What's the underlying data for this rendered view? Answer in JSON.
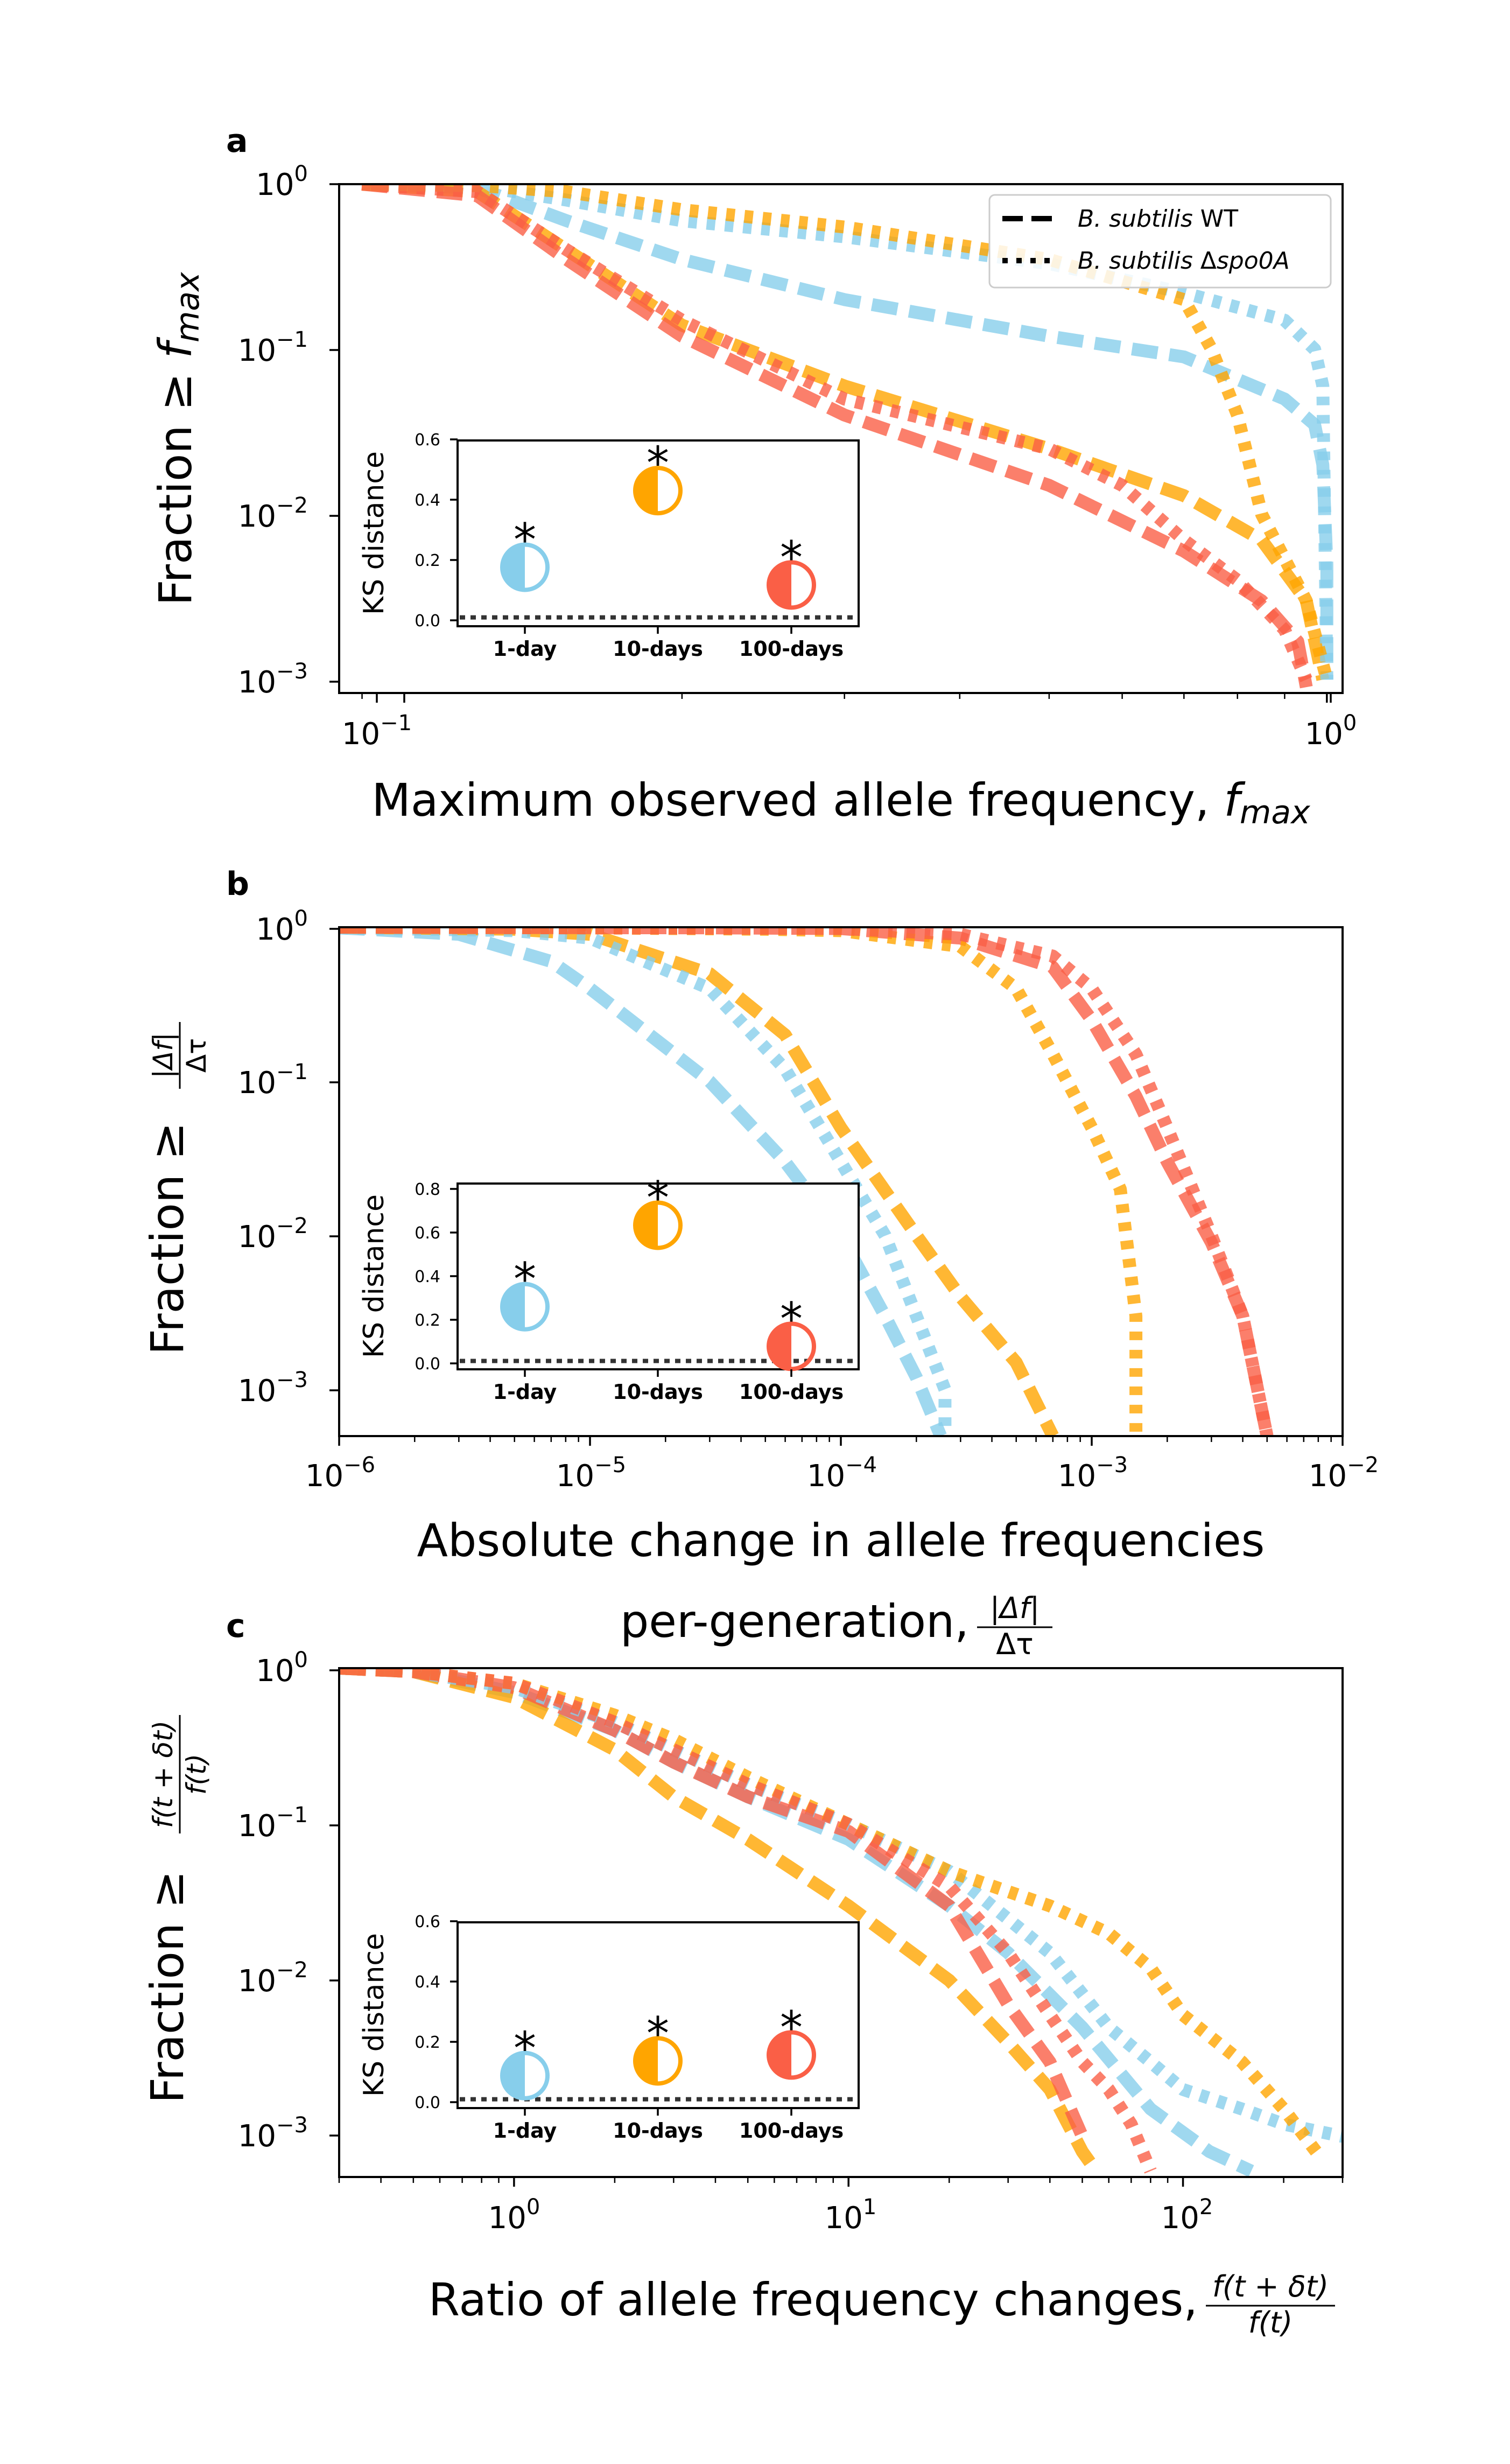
{
  "colors": {
    "1-day": "#87ceeb",
    "10-days": "#ffa500",
    "100-days": "#fa5f46"
  },
  "legend": [
    {
      "style": "dashed",
      "label_italic": "B. subtilis",
      "label_rest": " WT"
    },
    {
      "style": "dotted",
      "label_italic": "B. subtilis",
      "label_rest": " Δ",
      "label_italic2": "spo0A"
    }
  ],
  "panels": [
    {
      "panel_label": "a",
      "xlabel_main": "Maximum observed allele frequency, ",
      "xlabel_math": "f",
      "xlabel_sub": "max",
      "ylabel_main": "Fraction ≥ ",
      "ylabel_math": "f",
      "ylabel_sub": "max",
      "x_ticks": [
        {
          "base": "10",
          "exp": "−1"
        },
        {
          "base": "10",
          "exp": "0"
        }
      ],
      "y_ticks": [
        {
          "base": "10",
          "exp": "0"
        },
        {
          "base": "10",
          "exp": "−1"
        },
        {
          "base": "10",
          "exp": "−2"
        },
        {
          "base": "10",
          "exp": "−3"
        }
      ],
      "inset": {
        "ylabel": "KS distance",
        "yticks": [
          "0.0",
          "0.2",
          "0.4",
          "0.6"
        ],
        "categories": [
          "1-day",
          "10-days",
          "100-days"
        ],
        "stars": [
          "*",
          "*",
          "*"
        ]
      }
    },
    {
      "panel_label": "b",
      "xlabel_line1": "Absolute change in allele frequencies",
      "xlabel_line2": "per-generation, ",
      "frac_num": "|Δf|",
      "frac_den": "Δτ",
      "ylabel_main": "Fraction ≥ ",
      "x_ticks": [
        {
          "base": "10",
          "exp": "−6"
        },
        {
          "base": "10",
          "exp": "−5"
        },
        {
          "base": "10",
          "exp": "−4"
        },
        {
          "base": "10",
          "exp": "−3"
        },
        {
          "base": "10",
          "exp": "−2"
        }
      ],
      "y_ticks": [
        {
          "base": "10",
          "exp": "0"
        },
        {
          "base": "10",
          "exp": "−1"
        },
        {
          "base": "10",
          "exp": "−2"
        },
        {
          "base": "10",
          "exp": "−3"
        }
      ],
      "inset": {
        "ylabel": "KS distance",
        "yticks": [
          "0.0",
          "0.2",
          "0.4",
          "0.6",
          "0.8"
        ],
        "categories": [
          "1-day",
          "10-days",
          "100-days"
        ],
        "stars": [
          "*",
          "*",
          "*"
        ]
      }
    },
    {
      "panel_label": "c",
      "xlabel_main": "Ratio of allele frequency changes, ",
      "frac_num": "f(t + δt)",
      "frac_den": "f(t)",
      "ylabel_main": "Fraction ≥ ",
      "x_ticks": [
        {
          "base": "10",
          "exp": "0"
        },
        {
          "base": "10",
          "exp": "1"
        },
        {
          "base": "10",
          "exp": "2"
        }
      ],
      "y_ticks": [
        {
          "base": "10",
          "exp": "0"
        },
        {
          "base": "10",
          "exp": "−1"
        },
        {
          "base": "10",
          "exp": "−2"
        },
        {
          "base": "10",
          "exp": "−3"
        }
      ],
      "inset": {
        "ylabel": "KS distance",
        "yticks": [
          "0.0",
          "0.2",
          "0.4",
          "0.6"
        ],
        "categories": [
          "1-day",
          "10-days",
          "100-days"
        ],
        "stars": [
          "*",
          "*",
          "*"
        ]
      }
    }
  ],
  "chart_data": [
    {
      "type": "line",
      "x_scale": "log",
      "y_scale": "log",
      "xlim": [
        0.085,
        1.04
      ],
      "ylim": [
        0.00083,
        1.0
      ],
      "series": [
        {
          "group": "1-day",
          "style": "dashed",
          "x": [
            0.09,
            0.12,
            0.15,
            0.2,
            0.3,
            0.5,
            0.7,
            0.9,
            0.97,
            0.99,
            1.0,
            1.0
          ],
          "y": [
            1,
            0.95,
            0.6,
            0.35,
            0.2,
            0.12,
            0.09,
            0.05,
            0.035,
            0.02,
            0.005,
            0.001
          ]
        },
        {
          "group": "10-days",
          "style": "dashed",
          "x": [
            0.09,
            0.12,
            0.15,
            0.2,
            0.3,
            0.5,
            0.7,
            0.85,
            0.95,
            0.99
          ],
          "y": [
            1,
            0.9,
            0.4,
            0.14,
            0.06,
            0.025,
            0.013,
            0.007,
            0.003,
            0.001
          ]
        },
        {
          "group": "100-days",
          "style": "dashed",
          "x": [
            0.09,
            0.12,
            0.15,
            0.2,
            0.3,
            0.5,
            0.7,
            0.85,
            0.93,
            0.95
          ],
          "y": [
            1,
            0.85,
            0.35,
            0.12,
            0.04,
            0.015,
            0.006,
            0.003,
            0.0017,
            0.0009
          ]
        },
        {
          "group": "1-day",
          "style": "dotted",
          "x": [
            0.09,
            0.12,
            0.15,
            0.2,
            0.3,
            0.5,
            0.7,
            0.9,
            0.97,
            0.99,
            1.0
          ],
          "y": [
            1,
            0.98,
            0.8,
            0.6,
            0.48,
            0.33,
            0.22,
            0.15,
            0.1,
            0.06,
            0.001
          ]
        },
        {
          "group": "10-days",
          "style": "dotted",
          "x": [
            0.09,
            0.12,
            0.15,
            0.2,
            0.3,
            0.5,
            0.7,
            0.75,
            0.8,
            0.85,
            0.95,
            1.0
          ],
          "y": [
            1,
            0.98,
            0.9,
            0.7,
            0.55,
            0.35,
            0.2,
            0.1,
            0.04,
            0.01,
            0.003,
            0.001
          ]
        },
        {
          "group": "100-days",
          "style": "dotted",
          "x": [
            0.09,
            0.12,
            0.15,
            0.2,
            0.3,
            0.5,
            0.6,
            0.7,
            0.8,
            0.9,
            0.95
          ],
          "y": [
            1,
            0.9,
            0.4,
            0.15,
            0.05,
            0.025,
            0.015,
            0.007,
            0.004,
            0.002,
            0.001
          ]
        }
      ],
      "inset": {
        "ylim": [
          -0.03,
          0.6
        ],
        "points": [
          {
            "group": "1-day",
            "value": 0.17
          },
          {
            "group": "10-days",
            "value": 0.43
          },
          {
            "group": "100-days",
            "value": 0.11
          }
        ]
      }
    },
    {
      "type": "line",
      "x_scale": "log",
      "y_scale": "log",
      "xlim": [
        1e-06,
        0.01
      ],
      "ylim": [
        0.0005,
        1.0
      ],
      "series": [
        {
          "group": "1-day",
          "style": "dashed",
          "x": [
            1e-06,
            3e-06,
            7e-06,
            1e-05,
            3e-05,
            6e-05,
            0.0001,
            0.00015,
            0.0002,
            0.00025
          ],
          "y": [
            0.99,
            0.9,
            0.6,
            0.4,
            0.1,
            0.03,
            0.01,
            0.003,
            0.0012,
            0.0005
          ]
        },
        {
          "group": "10-days",
          "style": "dashed",
          "x": [
            1e-06,
            5e-06,
            1e-05,
            3e-05,
            6e-05,
            0.0001,
            0.0002,
            0.0003,
            0.0005,
            0.0007
          ],
          "y": [
            1,
            0.97,
            0.9,
            0.5,
            0.2,
            0.05,
            0.01,
            0.004,
            0.0015,
            0.0005
          ]
        },
        {
          "group": "100-days",
          "style": "dashed",
          "x": [
            1e-06,
            3e-05,
            0.0001,
            0.0003,
            0.0007,
            0.001,
            0.0015,
            0.002,
            0.003,
            0.004,
            0.005
          ],
          "y": [
            1,
            0.99,
            0.98,
            0.85,
            0.55,
            0.25,
            0.08,
            0.03,
            0.009,
            0.003,
            0.0005
          ]
        },
        {
          "group": "1-day",
          "style": "dotted",
          "x": [
            1e-06,
            5e-06,
            1e-05,
            3e-05,
            6e-05,
            0.0001,
            0.00015,
            0.0002,
            0.00026,
            0.00026
          ],
          "y": [
            0.99,
            0.95,
            0.85,
            0.4,
            0.12,
            0.03,
            0.01,
            0.003,
            0.001,
            0.0005
          ]
        },
        {
          "group": "10-days",
          "style": "dotted",
          "x": [
            1e-06,
            1e-05,
            5e-05,
            0.0001,
            0.0003,
            0.0005,
            0.0007,
            0.001,
            0.0013,
            0.0015,
            0.0015
          ],
          "y": [
            1,
            0.99,
            0.97,
            0.95,
            0.75,
            0.4,
            0.15,
            0.05,
            0.02,
            0.003,
            0.0005
          ]
        },
        {
          "group": "100-days",
          "style": "dotted",
          "x": [
            1e-06,
            0.0001,
            0.0003,
            0.0007,
            0.001,
            0.0015,
            0.002,
            0.003,
            0.004,
            0.005
          ],
          "y": [
            1,
            0.98,
            0.9,
            0.65,
            0.4,
            0.15,
            0.05,
            0.01,
            0.003,
            0.0005
          ]
        }
      ],
      "inset": {
        "ylim": [
          -0.04,
          0.85
        ],
        "points": [
          {
            "group": "1-day",
            "value": 0.26
          },
          {
            "group": "10-days",
            "value": 0.65
          },
          {
            "group": "100-days",
            "value": 0.07
          }
        ]
      }
    },
    {
      "type": "line",
      "x_scale": "log",
      "y_scale": "log",
      "xlim": [
        0.3,
        300
      ],
      "ylim": [
        0.00055,
        1.0
      ],
      "series": [
        {
          "group": "1-day",
          "style": "dashed",
          "x": [
            0.3,
            0.5,
            1,
            2,
            3,
            5,
            10,
            20,
            30,
            50,
            80,
            120,
            160
          ],
          "y": [
            1,
            0.95,
            0.7,
            0.4,
            0.25,
            0.15,
            0.08,
            0.03,
            0.015,
            0.005,
            0.0015,
            0.0008,
            0.0006
          ]
        },
        {
          "group": "10-days",
          "style": "dashed",
          "x": [
            0.3,
            0.5,
            1,
            2,
            3,
            5,
            10,
            20,
            30,
            40,
            50,
            55
          ],
          "y": [
            1,
            0.95,
            0.65,
            0.3,
            0.15,
            0.08,
            0.03,
            0.01,
            0.004,
            0.002,
            0.0008,
            0.0006
          ]
        },
        {
          "group": "100-days",
          "style": "dashed",
          "x": [
            0.3,
            0.5,
            1,
            2,
            3,
            5,
            10,
            20,
            30,
            40,
            50
          ],
          "y": [
            1,
            0.95,
            0.75,
            0.4,
            0.25,
            0.15,
            0.09,
            0.03,
            0.007,
            0.003,
            0.001
          ]
        },
        {
          "group": "1-day",
          "style": "dotted",
          "x": [
            0.3,
            0.5,
            1,
            2,
            3,
            5,
            10,
            20,
            40,
            60,
            80,
            100,
            150,
            200,
            300
          ],
          "y": [
            1,
            0.95,
            0.75,
            0.45,
            0.3,
            0.18,
            0.1,
            0.05,
            0.015,
            0.005,
            0.003,
            0.002,
            0.0015,
            0.0012,
            0.001
          ]
        },
        {
          "group": "10-days",
          "style": "dotted",
          "x": [
            0.3,
            0.5,
            1,
            2,
            3,
            5,
            10,
            20,
            40,
            60,
            80,
            100,
            150,
            200,
            250
          ],
          "y": [
            1,
            0.95,
            0.8,
            0.5,
            0.35,
            0.2,
            0.1,
            0.05,
            0.03,
            0.02,
            0.012,
            0.006,
            0.003,
            0.0015,
            0.0008
          ]
        },
        {
          "group": "100-days",
          "style": "dotted",
          "x": [
            0.3,
            0.5,
            1,
            2,
            3,
            5,
            10,
            20,
            30,
            40,
            50,
            60,
            70,
            80
          ],
          "y": [
            1,
            0.95,
            0.8,
            0.45,
            0.3,
            0.18,
            0.1,
            0.04,
            0.015,
            0.006,
            0.003,
            0.002,
            0.0012,
            0.0006
          ]
        }
      ],
      "inset": {
        "ylim": [
          -0.03,
          0.6
        ],
        "points": [
          {
            "group": "1-day",
            "value": 0.08
          },
          {
            "group": "10-days",
            "value": 0.13
          },
          {
            "group": "100-days",
            "value": 0.15
          }
        ]
      }
    }
  ]
}
